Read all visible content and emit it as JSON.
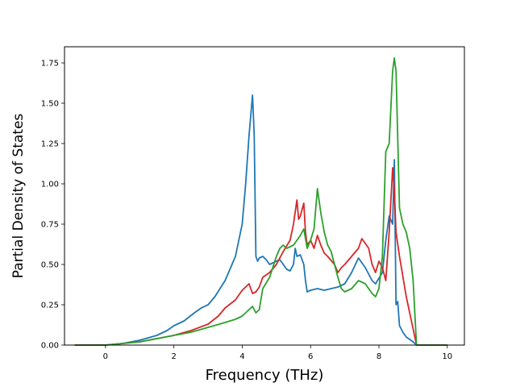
{
  "chart_data": {
    "type": "line",
    "title": "",
    "xlabel": "Frequency (THz)",
    "ylabel": "Partial Density of States",
    "xlim": [
      -1.2,
      10.5
    ],
    "ylim": [
      0,
      1.85
    ],
    "xticks": [
      0,
      2,
      4,
      6,
      8,
      10
    ],
    "xtick_labels": [
      "0",
      "2",
      "4",
      "6",
      "8",
      "10"
    ],
    "yticks": [
      0,
      0.25,
      0.5,
      0.75,
      1.0,
      1.25,
      1.5,
      1.75
    ],
    "ytick_labels": [
      "0.00",
      "0.25",
      "0.50",
      "0.75",
      "1.00",
      "1.25",
      "1.50",
      "1.75"
    ],
    "grid": false,
    "legend": "none",
    "series": [
      {
        "color": "#1f77b4",
        "x": [
          -0.9,
          0,
          0.5,
          1.0,
          1.5,
          1.8,
          2.0,
          2.3,
          2.6,
          2.8,
          3.0,
          3.2,
          3.5,
          3.6,
          3.8,
          4.0,
          4.1,
          4.2,
          4.3,
          4.35,
          4.4,
          4.45,
          4.5,
          4.6,
          4.7,
          4.8,
          5.0,
          5.1,
          5.2,
          5.3,
          5.4,
          5.5,
          5.55,
          5.6,
          5.7,
          5.8,
          5.85,
          5.9,
          6.0,
          6.2,
          6.4,
          6.6,
          6.8,
          7.0,
          7.2,
          7.4,
          7.6,
          7.8,
          7.9,
          8.1,
          8.2,
          8.3,
          8.4,
          8.45,
          8.5,
          8.55,
          8.6,
          8.7,
          8.8,
          9.0,
          9.1,
          9.5,
          10.0
        ],
        "y": [
          0,
          0,
          0.01,
          0.03,
          0.06,
          0.09,
          0.12,
          0.15,
          0.2,
          0.23,
          0.25,
          0.3,
          0.4,
          0.45,
          0.55,
          0.75,
          1.0,
          1.3,
          1.55,
          1.3,
          0.55,
          0.52,
          0.54,
          0.55,
          0.53,
          0.5,
          0.52,
          0.53,
          0.5,
          0.47,
          0.46,
          0.5,
          0.6,
          0.55,
          0.56,
          0.5,
          0.4,
          0.33,
          0.34,
          0.35,
          0.34,
          0.35,
          0.36,
          0.38,
          0.45,
          0.54,
          0.48,
          0.4,
          0.38,
          0.45,
          0.65,
          0.8,
          0.75,
          1.15,
          0.25,
          0.27,
          0.12,
          0.08,
          0.05,
          0.02,
          0,
          0,
          0
        ]
      },
      {
        "color": "#d62728",
        "x": [
          -0.9,
          0,
          0.5,
          1.0,
          1.5,
          2.0,
          2.5,
          3.0,
          3.3,
          3.5,
          3.8,
          4.0,
          4.2,
          4.3,
          4.4,
          4.5,
          4.6,
          4.8,
          5.0,
          5.2,
          5.4,
          5.5,
          5.6,
          5.65,
          5.7,
          5.8,
          5.85,
          5.9,
          6.0,
          6.1,
          6.2,
          6.3,
          6.4,
          6.5,
          6.7,
          6.8,
          6.9,
          7.0,
          7.2,
          7.4,
          7.5,
          7.6,
          7.7,
          7.8,
          7.9,
          8.0,
          8.1,
          8.2,
          8.3,
          8.4,
          8.45,
          8.5,
          8.6,
          8.8,
          9.0,
          9.1,
          9.5,
          10.0
        ],
        "y": [
          0,
          0,
          0.01,
          0.02,
          0.04,
          0.06,
          0.09,
          0.13,
          0.18,
          0.23,
          0.28,
          0.34,
          0.38,
          0.32,
          0.33,
          0.36,
          0.42,
          0.45,
          0.5,
          0.58,
          0.65,
          0.75,
          0.9,
          0.78,
          0.8,
          0.88,
          0.7,
          0.62,
          0.65,
          0.6,
          0.68,
          0.62,
          0.57,
          0.55,
          0.5,
          0.45,
          0.48,
          0.5,
          0.55,
          0.6,
          0.66,
          0.63,
          0.6,
          0.5,
          0.45,
          0.52,
          0.48,
          0.4,
          0.7,
          1.1,
          0.95,
          0.7,
          0.55,
          0.3,
          0.1,
          0,
          0,
          0
        ]
      },
      {
        "color": "#2ca02c",
        "x": [
          -0.9,
          0,
          0.5,
          1.0,
          1.5,
          2.0,
          2.5,
          3.0,
          3.5,
          3.8,
          4.0,
          4.2,
          4.3,
          4.4,
          4.5,
          4.6,
          4.8,
          5.0,
          5.1,
          5.2,
          5.3,
          5.5,
          5.6,
          5.7,
          5.8,
          5.9,
          6.0,
          6.1,
          6.2,
          6.3,
          6.4,
          6.5,
          6.6,
          6.7,
          6.8,
          6.9,
          7.0,
          7.2,
          7.4,
          7.6,
          7.8,
          7.9,
          8.0,
          8.1,
          8.2,
          8.3,
          8.4,
          8.45,
          8.5,
          8.6,
          8.7,
          8.8,
          8.9,
          9.0,
          9.1,
          9.5,
          10.0
        ],
        "y": [
          0,
          0,
          0.01,
          0.02,
          0.04,
          0.06,
          0.08,
          0.11,
          0.14,
          0.16,
          0.18,
          0.22,
          0.24,
          0.2,
          0.22,
          0.35,
          0.42,
          0.55,
          0.6,
          0.62,
          0.6,
          0.62,
          0.65,
          0.68,
          0.72,
          0.6,
          0.65,
          0.72,
          0.97,
          0.82,
          0.7,
          0.62,
          0.58,
          0.5,
          0.42,
          0.35,
          0.33,
          0.35,
          0.4,
          0.38,
          0.32,
          0.3,
          0.35,
          0.55,
          1.2,
          1.25,
          1.7,
          1.78,
          1.7,
          0.85,
          0.75,
          0.7,
          0.6,
          0.4,
          0,
          0,
          0
        ]
      }
    ]
  }
}
